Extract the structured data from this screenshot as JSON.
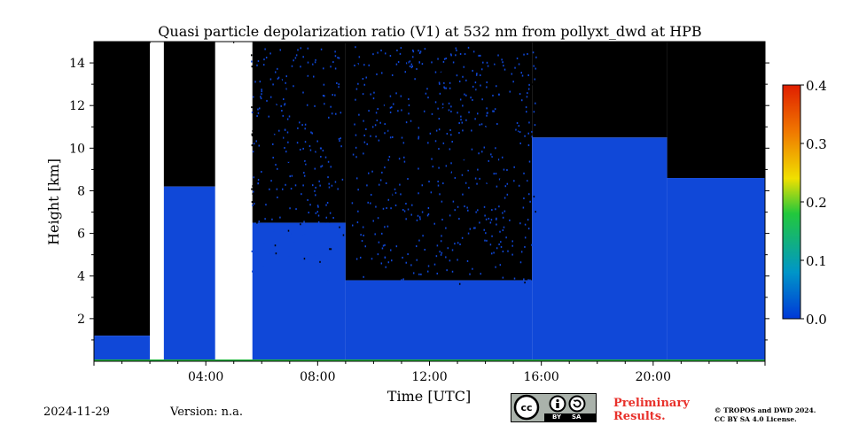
{
  "chart_data": {
    "type": "heatmap",
    "title": "Quasi particle depolarization ratio (V1) at 532 nm from pollyxt_dwd at HPB",
    "xlabel": "Time [UTC]",
    "ylabel": "Height [km]",
    "xlim_hours": [
      0,
      24
    ],
    "ylim_km": [
      0,
      15
    ],
    "x_ticks": [
      "04:00",
      "08:00",
      "12:00",
      "16:00",
      "20:00"
    ],
    "y_ticks": [
      "2",
      "4",
      "6",
      "8",
      "10",
      "12",
      "14"
    ],
    "colorbar": {
      "vmin": 0.0,
      "vmax": 0.4,
      "ticks": [
        "0.0",
        "0.1",
        "0.2",
        "0.3",
        "0.4"
      ],
      "colormap": "jet",
      "colors": [
        "#0038d8",
        "#0096c8",
        "#22c83c",
        "#f0e000",
        "#f07800",
        "#e01e00"
      ]
    },
    "colors": {
      "low_depol": "#1048d8",
      "no_signal": "#000000",
      "missing": "#ffffff"
    },
    "profile_summary": [
      {
        "from": "00:00",
        "to": "02:00",
        "blue_top_km": 1.2,
        "black_top_km": 15.0
      },
      {
        "from": "02:30",
        "to": "04:20",
        "blue_top_km": 8.2,
        "black_top_km": 15.0
      },
      {
        "from": "05:40",
        "to": "09:00",
        "blue_top_km": 6.5,
        "black_top_km": 15.0
      },
      {
        "from": "09:00",
        "to": "15:40",
        "blue_top_km": 3.8,
        "black_top_km": 15.0
      },
      {
        "from": "15:40",
        "to": "20:30",
        "blue_top_km": 10.5,
        "black_top_km": 15.0
      },
      {
        "from": "20:30",
        "to": "24:00",
        "blue_top_km": 8.6,
        "black_top_km": 15.0
      }
    ]
  },
  "footer": {
    "date": "2024-11-29",
    "version": "Version: n.a.",
    "preliminary_line1": "Preliminary",
    "preliminary_line2": "Results.",
    "copyright_line1": "© TROPOS and DWD 2024.",
    "copyright_line2": "CC BY SA 4.0 License.",
    "license_icons": [
      "cc-icon",
      "by-icon",
      "sa-icon"
    ],
    "license_labels": [
      "BY",
      "SA"
    ]
  }
}
